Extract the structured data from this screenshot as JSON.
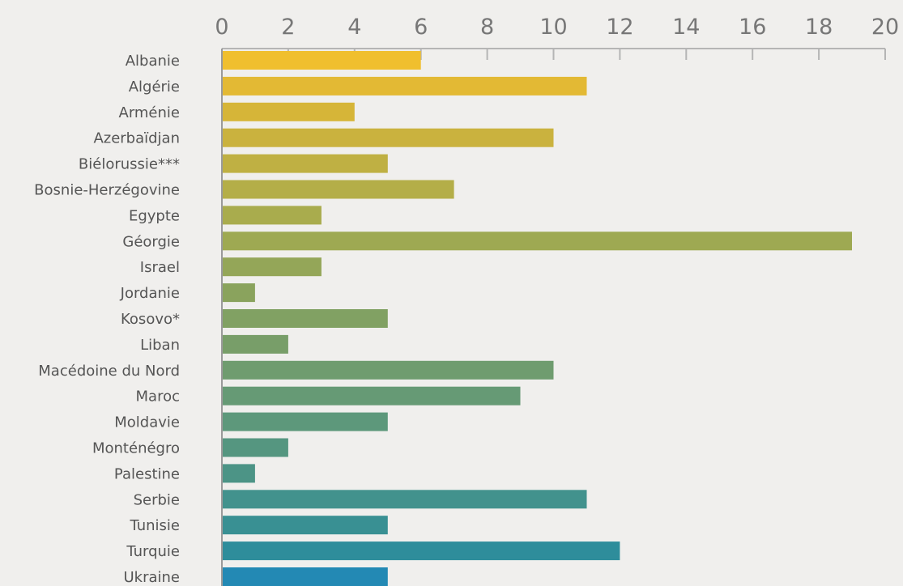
{
  "chart_data": {
    "type": "bar",
    "orientation": "horizontal",
    "categories": [
      "Albanie",
      "Algérie",
      "Arménie",
      "Azerbaïdjan",
      "Biélorussie***",
      "Bosnie-Herzégovine",
      "Egypte",
      "Géorgie",
      "Israel",
      "Jordanie",
      "Kosovo*",
      "Liban",
      "Macédoine du Nord",
      "Maroc",
      "Moldavie",
      "Monténégro",
      "Palestine",
      "Serbie",
      "Tunisie",
      "Turquie",
      "Ukraine"
    ],
    "values": [
      6,
      11,
      4,
      10,
      5,
      7,
      3,
      19,
      3,
      1,
      5,
      2,
      10,
      9,
      5,
      2,
      1,
      11,
      5,
      12,
      5
    ],
    "xlim": [
      0,
      20
    ],
    "xticks": [
      0,
      2,
      4,
      6,
      8,
      10,
      12,
      14,
      16,
      18,
      20
    ],
    "x_axis_position": "top",
    "grid": false,
    "colors": [
      "#f0bf2e",
      "#e3b934",
      "#d6b538",
      "#cab23e",
      "#bfb043",
      "#b4ae48",
      "#a9ac4d",
      "#9ea952",
      "#94a658",
      "#8aa35d",
      "#81a163",
      "#789e69",
      "#6f9c6f",
      "#669a75",
      "#5d987b",
      "#559680",
      "#4c9486",
      "#42928d",
      "#399093",
      "#2e8d9b",
      "#2389b4"
    ],
    "title": "",
    "xlabel": "",
    "ylabel": ""
  }
}
